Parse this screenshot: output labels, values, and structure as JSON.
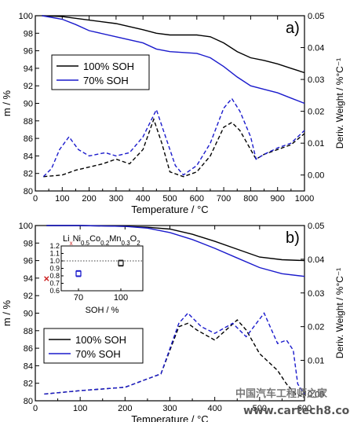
{
  "colors": {
    "soh100": "#000000",
    "soh70": "#1a1acc",
    "marker100": "#222222",
    "marker70": "#1a1acc",
    "xMarker": "#cc2222"
  },
  "watermark": {
    "line1": "中国汽车工程师之家",
    "line2": "www.cartech8.com"
  },
  "chart_data": [
    {
      "type": "line",
      "panel_label": "a)",
      "xlabel": "Temperature / °C",
      "ylabel": "m / %",
      "y2label": "Deriv. Weight / %°C⁻¹",
      "xlim": [
        0,
        1000
      ],
      "ylim": [
        80,
        100
      ],
      "y2lim": [
        -0.005,
        0.05
      ],
      "xticks": [
        "0",
        "100",
        "200",
        "300",
        "400",
        "500",
        "600",
        "700",
        "800",
        "900",
        "1000"
      ],
      "yticks": [
        "80",
        "82",
        "84",
        "86",
        "88",
        "90",
        "92",
        "94",
        "96",
        "98",
        "100"
      ],
      "y2ticks": [
        "0.00",
        "0.01",
        "0.02",
        "0.03",
        "0.04",
        "0.05"
      ],
      "legend": [
        "100% SOH",
        "70% SOH"
      ],
      "legend_position": "left, upper-middle",
      "mass_series": [
        {
          "name": "100% SOH",
          "style": "solid",
          "color_key": "soh100",
          "x": [
            25,
            100,
            200,
            300,
            400,
            450,
            500,
            600,
            650,
            700,
            750,
            800,
            850,
            900,
            950,
            1000
          ],
          "y": [
            100,
            99.9,
            99.5,
            99.1,
            98.4,
            98.0,
            97.8,
            97.8,
            97.6,
            96.9,
            95.9,
            95.2,
            94.9,
            94.5,
            94.0,
            93.5
          ]
        },
        {
          "name": "70% SOH",
          "style": "solid",
          "color_key": "soh70",
          "x": [
            25,
            100,
            150,
            200,
            300,
            400,
            450,
            500,
            600,
            650,
            700,
            750,
            800,
            850,
            900,
            950,
            1000
          ],
          "y": [
            100,
            99.6,
            99.0,
            98.3,
            97.6,
            96.9,
            96.2,
            95.9,
            95.7,
            95.2,
            94.2,
            93.0,
            92.0,
            91.6,
            91.2,
            90.6,
            90.0
          ]
        }
      ],
      "deriv_series": [
        {
          "name": "100% SOH",
          "style": "dashed",
          "color_key": "soh100",
          "x": [
            30,
            100,
            150,
            200,
            250,
            300,
            350,
            400,
            440,
            470,
            500,
            550,
            600,
            650,
            700,
            730,
            760,
            800,
            820,
            850,
            900,
            950,
            1000
          ],
          "y": [
            -0.0005,
            0.0,
            0.0015,
            0.0025,
            0.0035,
            0.005,
            0.0035,
            0.008,
            0.0175,
            0.01,
            0.001,
            -0.0005,
            0.001,
            0.006,
            0.015,
            0.0165,
            0.014,
            0.008,
            0.005,
            0.0065,
            0.008,
            0.0095,
            0.013
          ]
        },
        {
          "name": "70% SOH",
          "style": "dashed",
          "color_key": "soh70",
          "x": [
            30,
            60,
            90,
            125,
            160,
            200,
            260,
            300,
            350,
            400,
            450,
            480,
            520,
            550,
            600,
            650,
            700,
            730,
            760,
            800,
            820,
            850,
            900,
            950,
            1000
          ],
          "y": [
            -0.0005,
            0.002,
            0.008,
            0.012,
            0.008,
            0.006,
            0.007,
            0.006,
            0.007,
            0.012,
            0.0205,
            0.013,
            0.003,
            0.0,
            0.003,
            0.01,
            0.021,
            0.024,
            0.02,
            0.012,
            0.005,
            0.0065,
            0.0085,
            0.01,
            0.014
          ]
        }
      ]
    },
    {
      "type": "line",
      "panel_label": "b)",
      "xlabel": "Temperature / °C",
      "ylabel": "m / %",
      "y2label": "Deriv. Weight / %°C⁻¹",
      "xlim": [
        0,
        600
      ],
      "ylim": [
        80,
        100
      ],
      "y2lim": [
        -0.002,
        0.05
      ],
      "xticks": [
        "0",
        "100",
        "200",
        "300",
        "400",
        "500",
        "600"
      ],
      "yticks": [
        "80",
        "82",
        "84",
        "86",
        "88",
        "90",
        "92",
        "94",
        "96",
        "98",
        "100"
      ],
      "y2ticks": [
        "0.00",
        "0.01",
        "0.02",
        "0.03",
        "0.04",
        "0.05"
      ],
      "legend": [
        "100% SOH",
        "70% SOH"
      ],
      "legend_position": "lower-left",
      "mass_series": [
        {
          "name": "100% SOH",
          "style": "solid",
          "color_key": "soh100",
          "x": [
            25,
            100,
            200,
            250,
            300,
            350,
            400,
            450,
            500,
            550,
            600
          ],
          "y": [
            100,
            100,
            99.9,
            99.8,
            99.6,
            99.0,
            98.2,
            97.3,
            96.4,
            96.1,
            96.0
          ]
        },
        {
          "name": "70% SOH",
          "style": "solid",
          "color_key": "soh70",
          "x": [
            25,
            100,
            200,
            250,
            300,
            350,
            400,
            450,
            500,
            550,
            600
          ],
          "y": [
            100,
            100,
            99.9,
            99.7,
            99.2,
            98.4,
            97.4,
            96.3,
            95.2,
            94.5,
            94.2
          ]
        }
      ],
      "deriv_series": [
        {
          "name": "100% SOH",
          "style": "dashed",
          "color_key": "soh100",
          "x": [
            20,
            100,
            200,
            280,
            320,
            340,
            360,
            400,
            450,
            470,
            500,
            540,
            560,
            580,
            600
          ],
          "y": [
            0.0,
            0.001,
            0.002,
            0.006,
            0.02,
            0.021,
            0.019,
            0.016,
            0.022,
            0.019,
            0.012,
            0.007,
            0.003,
            0.0,
            -0.001
          ]
        },
        {
          "name": "70% SOH",
          "style": "dashed",
          "color_key": "soh70",
          "x": [
            20,
            100,
            200,
            280,
            320,
            340,
            370,
            400,
            440,
            470,
            510,
            540,
            560,
            575,
            585,
            600
          ],
          "y": [
            0.0,
            0.001,
            0.002,
            0.006,
            0.021,
            0.024,
            0.02,
            0.018,
            0.021,
            0.017,
            0.024,
            0.015,
            0.016,
            0.013,
            0.003,
            0.0
          ]
        }
      ],
      "marker": {
        "label": "×",
        "x": 25,
        "y": 94,
        "color_key": "xMarker"
      },
      "inset": {
        "type": "scatter",
        "title_parts": [
          "Li",
          "x",
          "Ni",
          "0.5",
          "Co",
          "0.2",
          "Mn",
          "0.3",
          "O",
          "2"
        ],
        "xlabel": "SOH / %",
        "xticks": [
          "70",
          "100"
        ],
        "ylim": [
          0.6,
          1.2
        ],
        "yticks": [
          "0.6",
          "0.7",
          "0.8",
          "0.9",
          "1.0",
          "1.1",
          "1.2"
        ],
        "reference_line": 1.0,
        "points": [
          {
            "x": "70",
            "y": 0.83,
            "err": 0.04,
            "color_key": "marker70",
            "style": "open square"
          },
          {
            "x": "100",
            "y": 0.97,
            "err": 0.04,
            "color_key": "marker100",
            "style": "open square"
          }
        ]
      }
    }
  ]
}
